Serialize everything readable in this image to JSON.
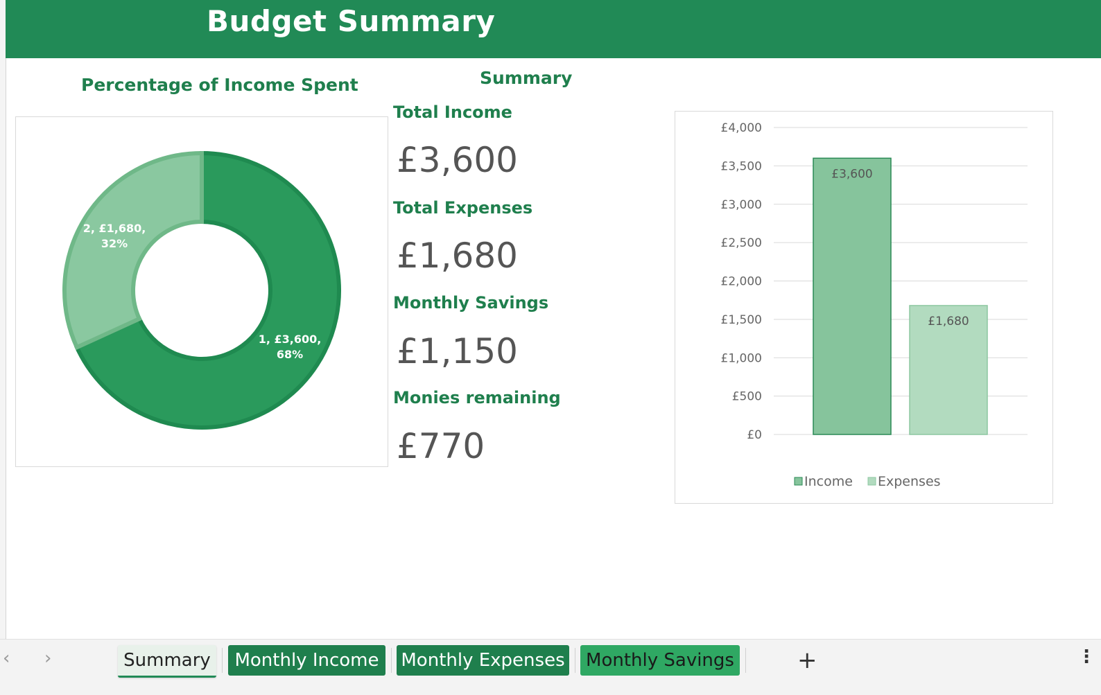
{
  "header": {
    "title": "Budget Summary"
  },
  "pie_chart": {
    "title": "Percentage of Income Spent"
  },
  "summary": {
    "title": "Summary",
    "items": [
      {
        "label": "Total Income",
        "value": "£3,600"
      },
      {
        "label": "Total Expenses",
        "value": "£1,680"
      },
      {
        "label": "Monthly Savings",
        "value": "£1,150"
      },
      {
        "label": "Monies remaining",
        "value": "£770"
      }
    ]
  },
  "chart_data": [
    {
      "type": "pie",
      "title": "Percentage of Income Spent",
      "slices": [
        {
          "label": "1, £3,600, 68%",
          "value": 3600,
          "percent": 68,
          "color": "#2a9a5c"
        },
        {
          "label": "2, £1,680, 32%",
          "value": 1680,
          "percent": 32,
          "color": "#8ac8a0"
        }
      ]
    },
    {
      "type": "bar",
      "categories": [
        "Income",
        "Expenses"
      ],
      "values": [
        3600,
        1680
      ],
      "data_labels": [
        "£3,600",
        "£1,680"
      ],
      "colors": [
        "#86c49c",
        "#b2dbbf"
      ],
      "ylim": [
        0,
        4000
      ],
      "yticks": [
        "£0",
        "£500",
        "£1,000",
        "£1,500",
        "£2,000",
        "£2,500",
        "£3,000",
        "£3,500",
        "£4,000"
      ],
      "legend": [
        "Income",
        "Expenses"
      ],
      "legend_position": "bottom",
      "grid": true
    }
  ],
  "tabs": {
    "prev_icon": "chevron-left",
    "next_icon": "chevron-right",
    "sheets": [
      {
        "label": "Summary",
        "style": "active"
      },
      {
        "label": "Monthly Income",
        "style": "green"
      },
      {
        "label": "Monthly Expenses",
        "style": "green"
      },
      {
        "label": "Monthly Savings",
        "style": "light"
      }
    ],
    "add_label": "+",
    "more_label": "⋮"
  },
  "colors": {
    "brand_green": "#218a56",
    "heading_green": "#1f7f4d"
  }
}
